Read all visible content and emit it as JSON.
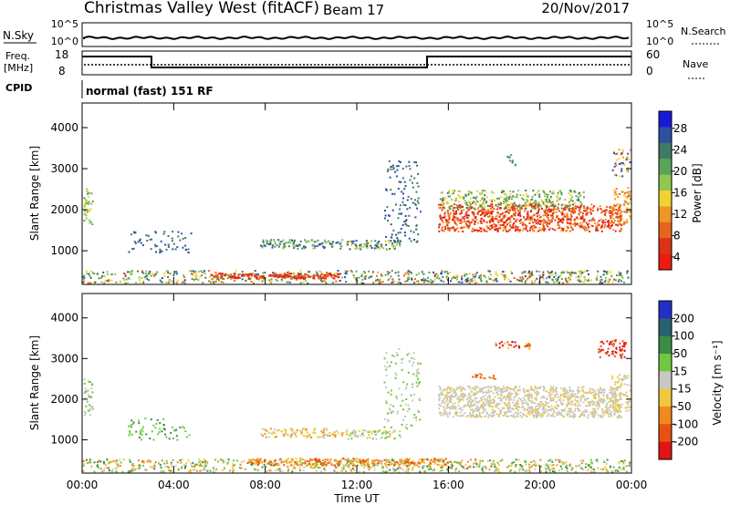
{
  "header": {
    "title": "Christmas Valley West (fitACF)",
    "beam": "Beam 17",
    "date": "20/Nov/2017"
  },
  "noise_panel": {
    "left_label": "N.Sky",
    "right_label": "N.Search",
    "tick_top": "10^5",
    "tick_bottom": "10^0"
  },
  "freq_panel": {
    "left_label_1": "Freq.",
    "left_label_2": "[MHz]",
    "right_label": "Nave",
    "left_ticks": [
      "18",
      "8"
    ],
    "right_ticks": [
      "60",
      "0"
    ]
  },
  "cpid": {
    "label": "CPID",
    "mode": "normal (fast) 151 RF"
  },
  "chart_data": [
    {
      "type": "heatmap",
      "name": "power",
      "ylabel": "Slant Range [km]",
      "ylim": [
        180,
        4600
      ],
      "yticks": [
        1000,
        2000,
        3000,
        4000
      ],
      "colorbar": {
        "label": "Power [dB]",
        "ticks": [
          "4",
          "8",
          "12",
          "16",
          "20",
          "24",
          "28"
        ],
        "colors": [
          "#1a1ad6",
          "#2d50a0",
          "#3f7a66",
          "#5aa45a",
          "#8fc850",
          "#f0d232",
          "#f09628",
          "#e8641e",
          "#dc3214",
          "#ee1a10"
        ]
      }
    },
    {
      "type": "heatmap",
      "name": "velocity",
      "ylabel": "Slant Range [km]",
      "xlabel": "Time UT",
      "ylim": [
        180,
        4600
      ],
      "yticks": [
        1000,
        2000,
        3000,
        4000
      ],
      "xticks": [
        "00:00",
        "04:00",
        "08:00",
        "12:00",
        "16:00",
        "20:00",
        "00:00"
      ],
      "colorbar": {
        "label": "Velocity [m s⁻¹]",
        "ticks": [
          "200",
          "100",
          "50",
          "15",
          "-15",
          "-50",
          "-100",
          "-200"
        ],
        "colors": [
          "#2230c8",
          "#2a6070",
          "#3c8c46",
          "#70c840",
          "#c8c8c0",
          "#f0c83c",
          "#f08a1e",
          "#e85014",
          "#e01414"
        ]
      }
    }
  ],
  "colors": {
    "axis": "#000000",
    "ground_scatter": "#c8c8c0"
  }
}
